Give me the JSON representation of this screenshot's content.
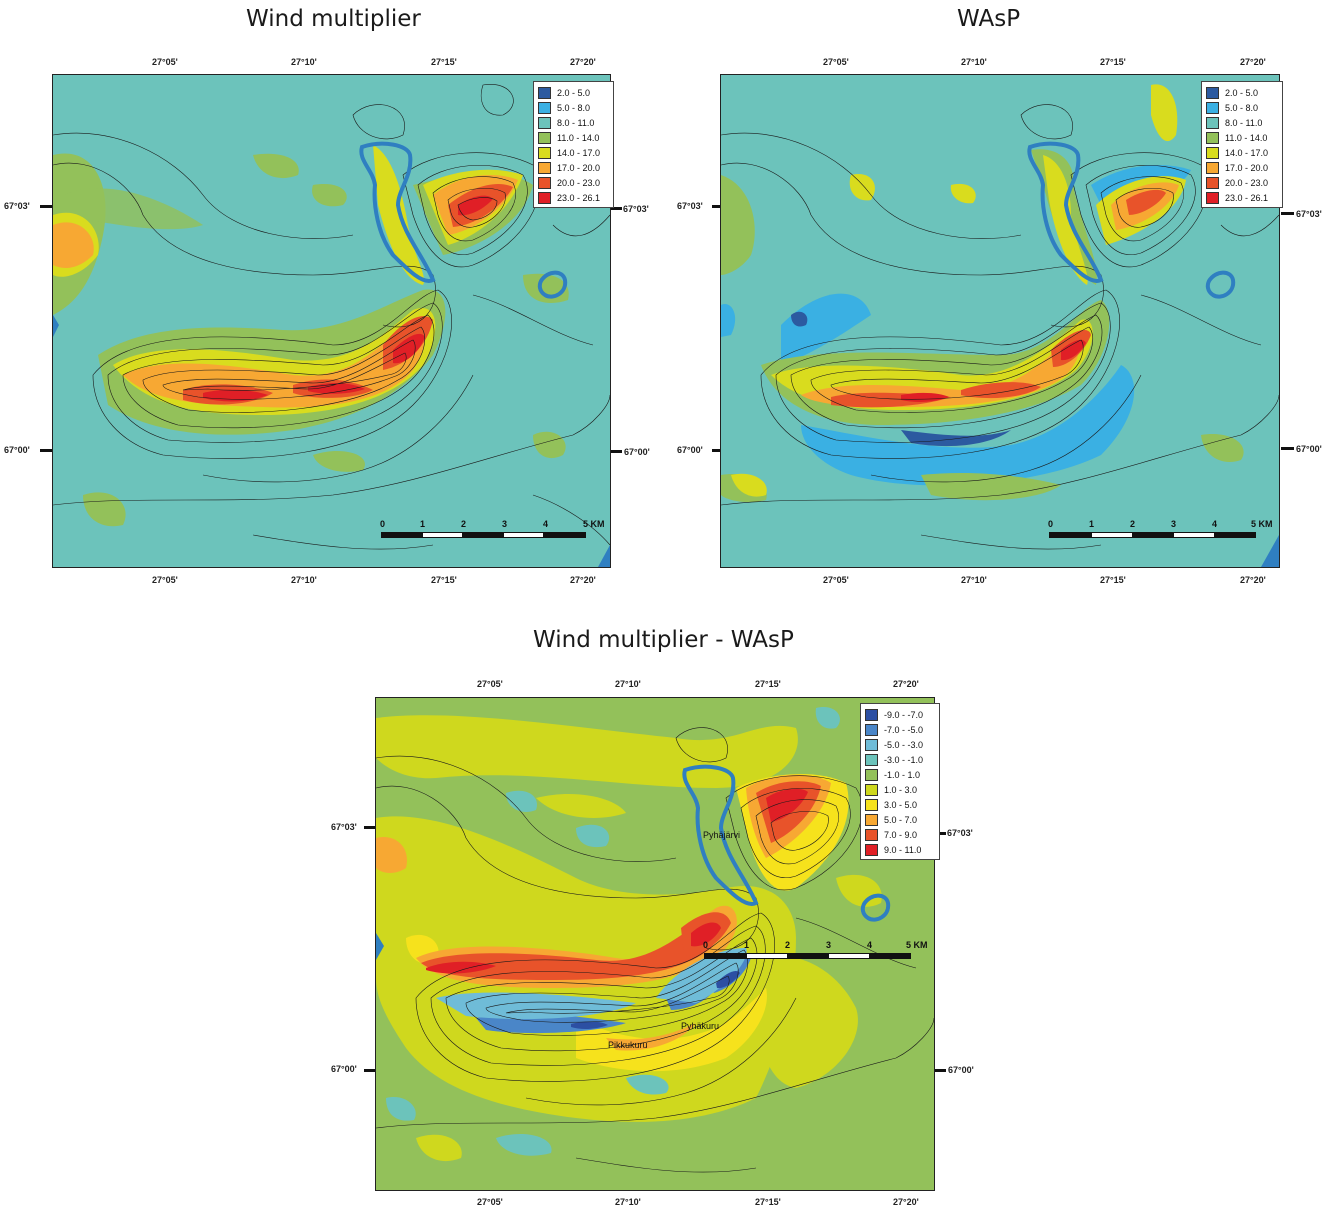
{
  "panels": [
    {
      "title": "Wind multiplier",
      "base_color": "#6cc3bb",
      "legend": [
        {
          "label": "2.0 - 5.0",
          "color": "#2c5aa0"
        },
        {
          "label": "5.0 - 8.0",
          "color": "#3ab0e3"
        },
        {
          "label": "8.0 - 11.0",
          "color": "#6cc3bb"
        },
        {
          "label": "11.0 - 14.0",
          "color": "#93c15a"
        },
        {
          "label": "14.0 - 17.0",
          "color": "#d9dc1e"
        },
        {
          "label": "17.0 - 20.0",
          "color": "#f7a833"
        },
        {
          "label": "20.0 - 23.0",
          "color": "#e8532a"
        },
        {
          "label": "23.0 - 26.1",
          "color": "#e01f26"
        }
      ],
      "x_ticks": [
        "27°05'",
        "27°10'",
        "27°15'",
        "27°20'"
      ],
      "y_ticks": [
        "67°03'",
        "67°00'"
      ],
      "scale": {
        "labels": [
          "0",
          "1",
          "2",
          "3",
          "4",
          "5 KM"
        ]
      }
    },
    {
      "title": "WAsP",
      "base_color": "#6cc3bb",
      "legend": [
        {
          "label": "2.0 - 5.0",
          "color": "#2c5aa0"
        },
        {
          "label": "5.0 - 8.0",
          "color": "#3ab0e3"
        },
        {
          "label": "8.0 - 11.0",
          "color": "#6cc3bb"
        },
        {
          "label": "11.0 - 14.0",
          "color": "#93c15a"
        },
        {
          "label": "14.0 - 17.0",
          "color": "#d9dc1e"
        },
        {
          "label": "17.0 - 20.0",
          "color": "#f7a833"
        },
        {
          "label": "20.0 - 23.0",
          "color": "#e8532a"
        },
        {
          "label": "23.0 - 26.1",
          "color": "#e01f26"
        }
      ],
      "x_ticks": [
        "27°05'",
        "27°10'",
        "27°15'",
        "27°20'"
      ],
      "y_ticks": [
        "67°03'",
        "67°00'"
      ],
      "scale": {
        "labels": [
          "0",
          "1",
          "2",
          "3",
          "4",
          "5 KM"
        ]
      }
    },
    {
      "title": "Wind multiplier - WAsP",
      "base_color": "#93c15a",
      "legend": [
        {
          "label": "-9.0 - -7.0",
          "color": "#2c4fa3"
        },
        {
          "label": "-7.0 - -5.0",
          "color": "#4a86c8"
        },
        {
          "label": "-5.0 - -3.0",
          "color": "#6fbcd8"
        },
        {
          "label": "-3.0 - -1.0",
          "color": "#6cc3bb"
        },
        {
          "label": "-1.0 - 1.0",
          "color": "#93c15a"
        },
        {
          "label": "1.0 - 3.0",
          "color": "#cfd81e"
        },
        {
          "label": "3.0 - 5.0",
          "color": "#f6e21c"
        },
        {
          "label": "5.0 - 7.0",
          "color": "#f7a833"
        },
        {
          "label": "7.0 - 9.0",
          "color": "#e8532a"
        },
        {
          "label": "9.0 - 11.0",
          "color": "#e01f26"
        }
      ],
      "x_ticks": [
        "27°05'",
        "27°10'",
        "27°15'",
        "27°20'"
      ],
      "y_ticks": [
        "67°03'",
        "67°00'"
      ],
      "scale": {
        "labels": [
          "0",
          "1",
          "2",
          "3",
          "4",
          "5 KM"
        ]
      },
      "place_names": [
        "Pyhäjärvi",
        "Pyhäkuru",
        "Pikkukuru"
      ]
    }
  ],
  "lake_color": "#2f7fc1"
}
